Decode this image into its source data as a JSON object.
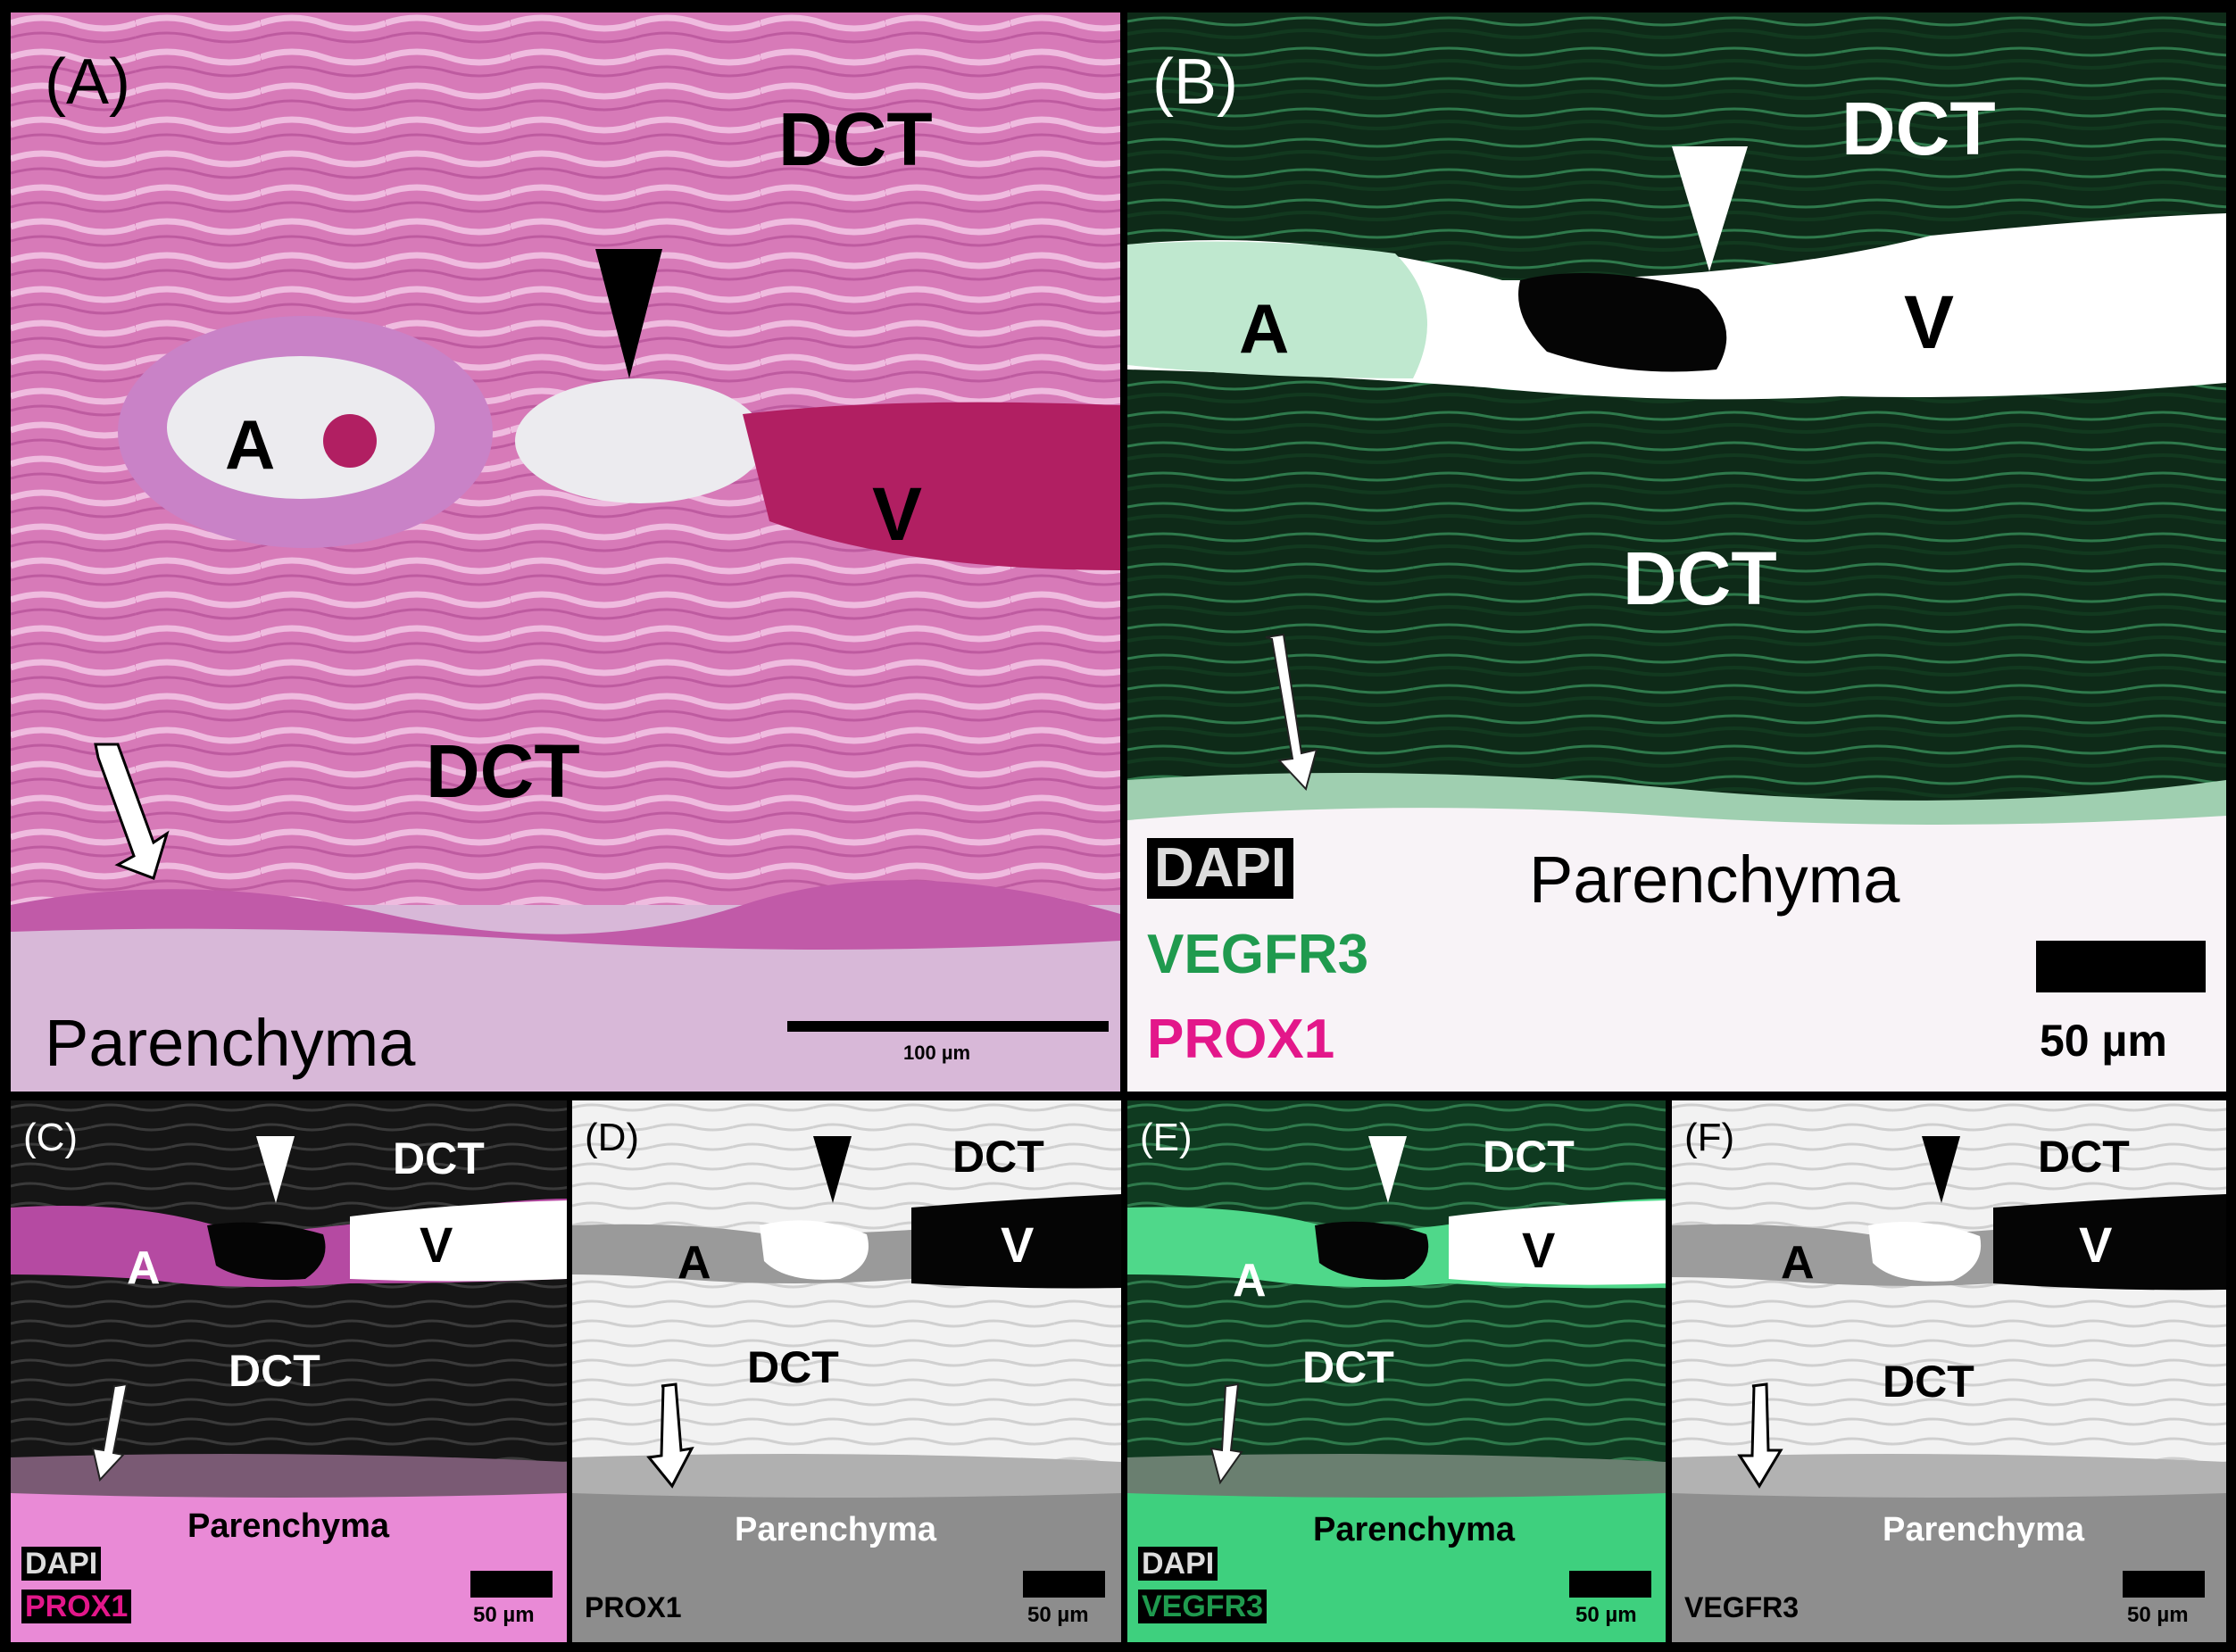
{
  "figure": {
    "panels": [
      {
        "id": "A",
        "letter": "(A)",
        "labels": {
          "dct_top": "DCT",
          "dct_mid": "DCT",
          "artery": "A",
          "vein": "V",
          "parenchyma": "Parenchyma"
        },
        "scale_bar": "100 µm",
        "colors": {
          "tissue": "#d77ab8",
          "lumen": "#ecebef",
          "blood": "#b11f62"
        }
      },
      {
        "id": "B",
        "letter": "(B)",
        "labels": {
          "dct_top": "DCT",
          "dct_mid": "DCT",
          "artery": "A",
          "vein": "V",
          "parenchyma": "Parenchyma"
        },
        "legend": [
          "DAPI",
          "VEGFR3",
          "PROX1"
        ],
        "scale_bar": "50 µm",
        "colors": {
          "tissue": "#0e2a18",
          "lumen": "#ffffff",
          "dapi": "#1a1a1a",
          "vegfr3": "#1f9a4e",
          "prox1": "#e3178a"
        }
      },
      {
        "id": "C",
        "letter": "(C)",
        "labels": {
          "dct_top": "DCT",
          "dct_mid": "DCT",
          "artery": "A",
          "vein": "V",
          "parenchyma": "Parenchyma"
        },
        "legend": [
          "DAPI",
          "PROX1"
        ],
        "scale_bar": "50 µm",
        "colors": {
          "tissue": "#151515",
          "parenchyma": "#e98ad6",
          "prox1": "#e3178a"
        }
      },
      {
        "id": "D",
        "letter": "(D)",
        "labels": {
          "dct_top": "DCT",
          "dct_mid": "DCT",
          "artery": "A",
          "vein": "V",
          "parenchyma": "Parenchyma"
        },
        "legend": [
          "PROX1"
        ],
        "scale_bar": "50 µm",
        "colors": {
          "tissue": "#f2f2f2",
          "parenchyma": "#8d8d8d"
        }
      },
      {
        "id": "E",
        "letter": "(E)",
        "labels": {
          "dct_top": "DCT",
          "dct_mid": "DCT",
          "artery": "A",
          "vein": "V",
          "parenchyma": "Parenchyma"
        },
        "legend": [
          "DAPI",
          "VEGFR3"
        ],
        "scale_bar": "50 µm",
        "colors": {
          "tissue": "#0f3a20",
          "parenchyma": "#3ed07e",
          "vegfr3": "#1f9a4e"
        }
      },
      {
        "id": "F",
        "letter": "(F)",
        "labels": {
          "dct_top": "DCT",
          "dct_mid": "DCT",
          "artery": "A",
          "vein": "V",
          "parenchyma": "Parenchyma"
        },
        "legend": [
          "VEGFR3"
        ],
        "scale_bar": "50 µm",
        "colors": {
          "tissue": "#f2f2f2",
          "parenchyma": "#8e8e8e"
        }
      }
    ]
  }
}
